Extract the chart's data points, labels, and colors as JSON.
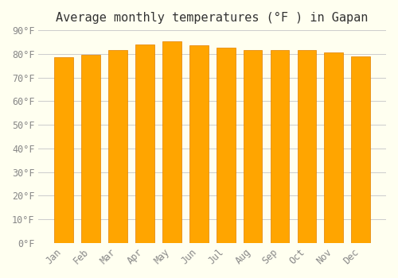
{
  "title": "Average monthly temperatures (°F ) in Gapan",
  "months": [
    "Jan",
    "Feb",
    "Mar",
    "Apr",
    "May",
    "Jun",
    "Jul",
    "Aug",
    "Sep",
    "Oct",
    "Nov",
    "Dec"
  ],
  "values": [
    78.5,
    79.5,
    81.5,
    84.0,
    85.5,
    83.5,
    82.5,
    81.5,
    81.5,
    81.5,
    80.5,
    79.0
  ],
  "bar_color": "#FFA500",
  "bar_edge_color": "#E08000",
  "background_color": "#FFFFF0",
  "plot_bg_color": "#FFFFF0",
  "ylim": [
    0,
    90
  ],
  "ytick_step": 10,
  "grid_color": "#CCCCCC",
  "title_fontsize": 11,
  "tick_fontsize": 8.5,
  "tick_font_color": "#888888"
}
